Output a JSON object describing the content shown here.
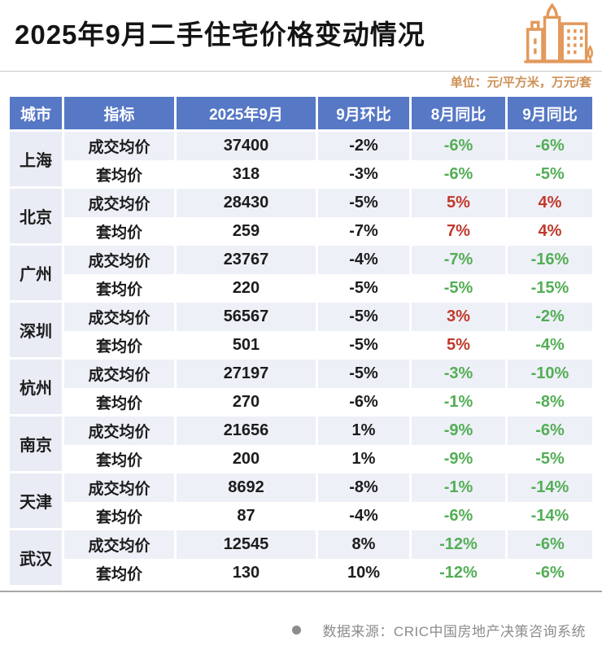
{
  "header": {
    "title": "2025年9月二手住宅价格变动情况",
    "unit_note": "单位：元/平方米，万元/套",
    "icon": "city-buildings-icon",
    "icon_color": "#e2995b"
  },
  "chart_data": {
    "type": "table",
    "title": "2025年9月二手住宅价格变动情况",
    "columns": [
      "城市",
      "指标",
      "2025年9月",
      "9月环比",
      "8月同比",
      "9月同比"
    ],
    "cities": [
      {
        "name": "上海",
        "rows": [
          {
            "indicator": "成交均价",
            "sep_value": "37400",
            "mom": "-2%",
            "aug_yoy": "-6%",
            "aug_trend": "down",
            "sep_yoy": "-6%",
            "sep_trend": "down"
          },
          {
            "indicator": "套均价",
            "sep_value": "318",
            "mom": "-3%",
            "aug_yoy": "-6%",
            "aug_trend": "down",
            "sep_yoy": "-5%",
            "sep_trend": "down"
          }
        ]
      },
      {
        "name": "北京",
        "rows": [
          {
            "indicator": "成交均价",
            "sep_value": "28430",
            "mom": "-5%",
            "aug_yoy": "5%",
            "aug_trend": "up",
            "sep_yoy": "4%",
            "sep_trend": "up"
          },
          {
            "indicator": "套均价",
            "sep_value": "259",
            "mom": "-7%",
            "aug_yoy": "7%",
            "aug_trend": "up",
            "sep_yoy": "4%",
            "sep_trend": "up"
          }
        ]
      },
      {
        "name": "广州",
        "rows": [
          {
            "indicator": "成交均价",
            "sep_value": "23767",
            "mom": "-4%",
            "aug_yoy": "-7%",
            "aug_trend": "down",
            "sep_yoy": "-16%",
            "sep_trend": "down"
          },
          {
            "indicator": "套均价",
            "sep_value": "220",
            "mom": "-5%",
            "aug_yoy": "-5%",
            "aug_trend": "down",
            "sep_yoy": "-15%",
            "sep_trend": "down"
          }
        ]
      },
      {
        "name": "深圳",
        "rows": [
          {
            "indicator": "成交均价",
            "sep_value": "56567",
            "mom": "-5%",
            "aug_yoy": "3%",
            "aug_trend": "up",
            "sep_yoy": "-2%",
            "sep_trend": "down"
          },
          {
            "indicator": "套均价",
            "sep_value": "501",
            "mom": "-5%",
            "aug_yoy": "5%",
            "aug_trend": "up",
            "sep_yoy": "-4%",
            "sep_trend": "down"
          }
        ]
      },
      {
        "name": "杭州",
        "rows": [
          {
            "indicator": "成交均价",
            "sep_value": "27197",
            "mom": "-5%",
            "aug_yoy": "-3%",
            "aug_trend": "down",
            "sep_yoy": "-10%",
            "sep_trend": "down"
          },
          {
            "indicator": "套均价",
            "sep_value": "270",
            "mom": "-6%",
            "aug_yoy": "-1%",
            "aug_trend": "down",
            "sep_yoy": "-8%",
            "sep_trend": "down"
          }
        ]
      },
      {
        "name": "南京",
        "rows": [
          {
            "indicator": "成交均价",
            "sep_value": "21656",
            "mom": "1%",
            "aug_yoy": "-9%",
            "aug_trend": "down",
            "sep_yoy": "-6%",
            "sep_trend": "down"
          },
          {
            "indicator": "套均价",
            "sep_value": "200",
            "mom": "1%",
            "aug_yoy": "-9%",
            "aug_trend": "down",
            "sep_yoy": "-5%",
            "sep_trend": "down"
          }
        ]
      },
      {
        "name": "天津",
        "rows": [
          {
            "indicator": "成交均价",
            "sep_value": "8692",
            "mom": "-8%",
            "aug_yoy": "-1%",
            "aug_trend": "down",
            "sep_yoy": "-14%",
            "sep_trend": "down"
          },
          {
            "indicator": "套均价",
            "sep_value": "87",
            "mom": "-4%",
            "aug_yoy": "-6%",
            "aug_trend": "down",
            "sep_yoy": "-14%",
            "sep_trend": "down"
          }
        ]
      },
      {
        "name": "武汉",
        "rows": [
          {
            "indicator": "成交均价",
            "sep_value": "12545",
            "mom": "8%",
            "aug_yoy": "-12%",
            "aug_trend": "down",
            "sep_yoy": "-6%",
            "sep_trend": "down"
          },
          {
            "indicator": "套均价",
            "sep_value": "130",
            "mom": "10%",
            "aug_yoy": "-12%",
            "aug_trend": "down",
            "sep_yoy": "-6%",
            "sep_trend": "down"
          }
        ]
      }
    ],
    "legend_colors": {
      "header_bg": "#5678c5",
      "city_cell_bg": "#e9ecf5",
      "stripe_row_bg": "#eef0f7",
      "trend_down_green": "#53ae56",
      "trend_up_red": "#c0392b"
    }
  },
  "footer": {
    "bullet": "dot-icon",
    "source_text": "数据来源：CRIC中国房地产决策咨询系统"
  }
}
